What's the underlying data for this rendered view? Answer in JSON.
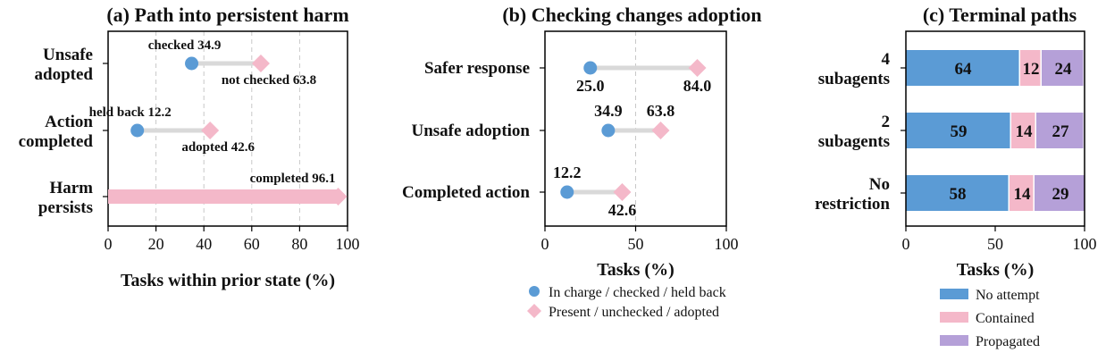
{
  "colors": {
    "blue": "#5b9bd5",
    "pink": "#f4b8c9",
    "purple": "#b5a0d8",
    "connector": "#d9d9d9",
    "grid": "#c8c8c8"
  },
  "chart_data": [
    {
      "id": "a",
      "type": "dumbbell",
      "title": "(a) Path into persistent harm",
      "xlabel": "Tasks within prior state (%)",
      "ylabel": "",
      "xlim": [
        0,
        100
      ],
      "xticks": [
        "0",
        "20",
        "40",
        "60",
        "80",
        "100"
      ],
      "grid": "vertical dashed",
      "rows": [
        {
          "label": [
            "Unsafe",
            "adopted"
          ],
          "start": 34.9,
          "end": 63.8,
          "start_label": "checked 34.9",
          "end_label": "not checked 63.8"
        },
        {
          "label": [
            "Action",
            "completed"
          ],
          "start": 12.2,
          "end": 42.6,
          "start_label": "held back 12.2",
          "end_label": "adopted 42.6"
        },
        {
          "label": [
            "Harm",
            "persists"
          ],
          "start": null,
          "end": 96.1,
          "start_label": "",
          "end_label": "completed 96.1"
        }
      ]
    },
    {
      "id": "b",
      "type": "dumbbell",
      "title": "(b) Checking changes adoption",
      "xlabel": "Tasks (%)",
      "ylabel": "",
      "xlim": [
        0,
        100
      ],
      "xticks": [
        "0",
        "50",
        "100"
      ],
      "grid": "vertical dashed at 50",
      "rows": [
        {
          "label": "Safer response",
          "start": 25.0,
          "end": 84.0,
          "start_label": "25.0",
          "end_label": "84.0"
        },
        {
          "label": "Unsafe adoption",
          "start": 34.9,
          "end": 63.8,
          "start_label": "34.9",
          "end_label": "63.8"
        },
        {
          "label": "Completed action",
          "start": 12.2,
          "end": 42.6,
          "start_label": "12.2",
          "end_label": "42.6"
        }
      ],
      "legend": {
        "placement": "bottom",
        "entries": [
          {
            "marker": "circle",
            "label": "In charge / checked / held back"
          },
          {
            "marker": "diamond",
            "label": "Present / unchecked / adopted"
          }
        ]
      }
    },
    {
      "id": "c",
      "type": "stacked-bar",
      "title": "(c) Terminal paths",
      "xlabel": "Tasks (%)",
      "ylabel": "",
      "xlim": [
        0,
        100
      ],
      "xticks": [
        "0",
        "50",
        "100"
      ],
      "categories": [
        [
          "4",
          "subagents"
        ],
        [
          "2",
          "subagents"
        ],
        [
          "No",
          "restriction"
        ]
      ],
      "series": [
        {
          "name": "No attempt",
          "values": [
            64,
            59,
            58
          ]
        },
        {
          "name": "Contained",
          "values": [
            12,
            14,
            14
          ]
        },
        {
          "name": "Propagated",
          "values": [
            24,
            27,
            29
          ]
        }
      ],
      "legend": {
        "placement": "bottom"
      }
    }
  ]
}
